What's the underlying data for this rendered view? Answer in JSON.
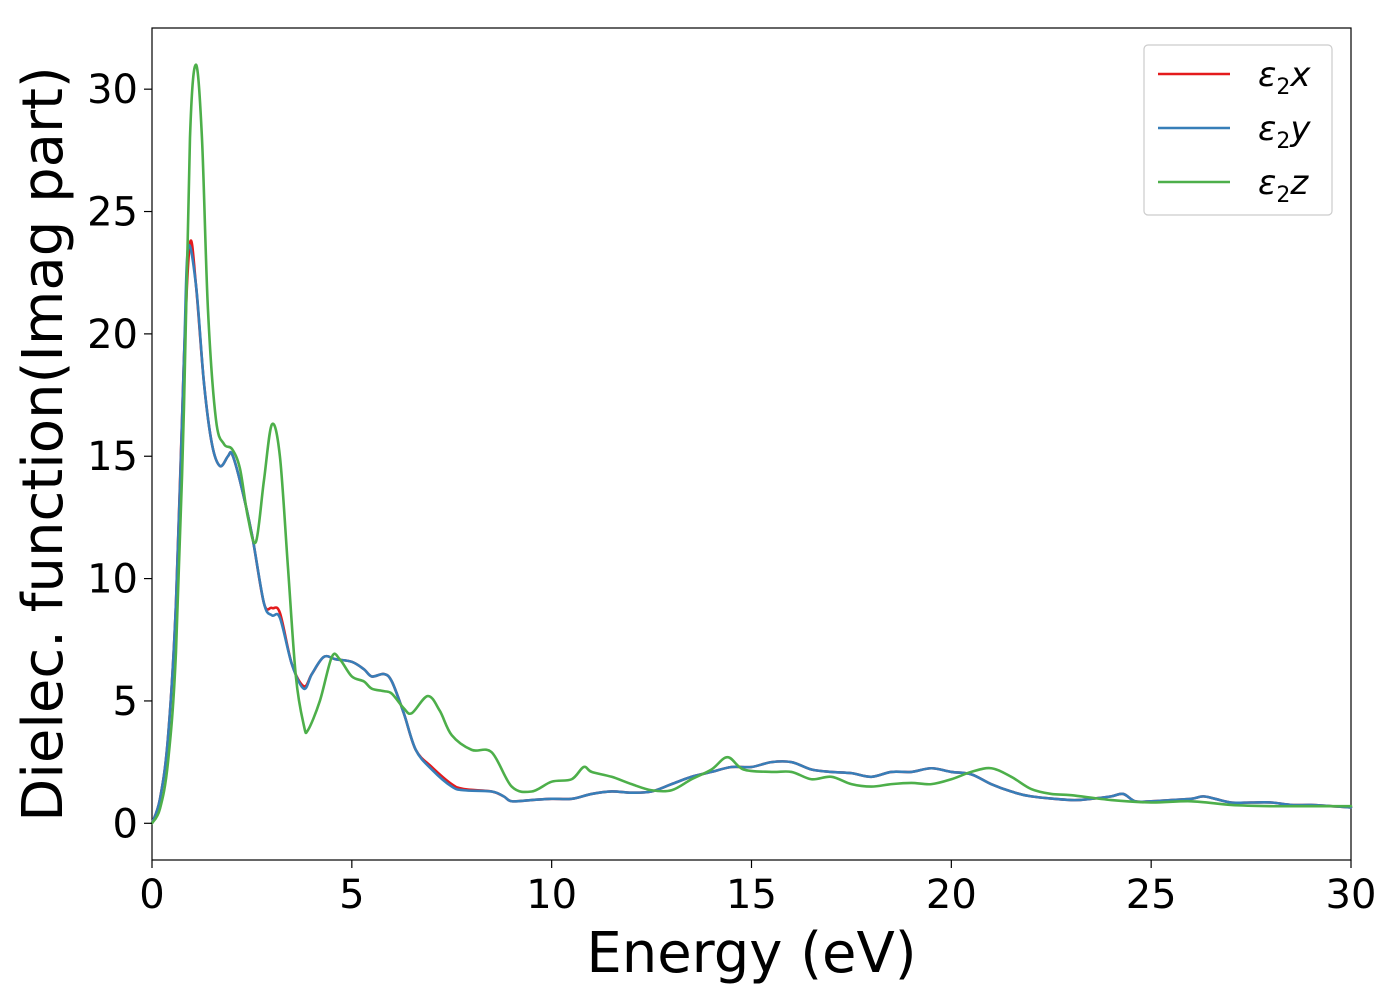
{
  "chart_data": {
    "type": "line",
    "title": "",
    "xlabel": "Energy (eV)",
    "ylabel": "Dielec. function(Imag part)",
    "xlim": [
      0,
      30
    ],
    "ylim": [
      -1.5,
      32.5
    ],
    "xticks": [
      0,
      5,
      10,
      15,
      20,
      25,
      30
    ],
    "yticks": [
      0,
      5,
      10,
      15,
      20,
      25,
      30
    ],
    "grid": false,
    "legend_position": "top-right",
    "series": [
      {
        "name": "ε2x",
        "legend_main": "ε",
        "legend_sub": "2",
        "legend_var": "x",
        "color": "#e41a1c",
        "points": [
          [
            0,
            0
          ],
          [
            0.2,
            1
          ],
          [
            0.4,
            3.5
          ],
          [
            0.6,
            9
          ],
          [
            0.8,
            19
          ],
          [
            0.95,
            23.7
          ],
          [
            1.1,
            22
          ],
          [
            1.3,
            18
          ],
          [
            1.5,
            15.5
          ],
          [
            1.7,
            14.6
          ],
          [
            1.9,
            15
          ],
          [
            2.0,
            15.1
          ],
          [
            2.2,
            14
          ],
          [
            2.5,
            11.8
          ],
          [
            2.8,
            9
          ],
          [
            3.0,
            8.8
          ],
          [
            3.2,
            8.6
          ],
          [
            3.5,
            6.5
          ],
          [
            3.8,
            5.6
          ],
          [
            4.0,
            6.1
          ],
          [
            4.3,
            6.8
          ],
          [
            4.6,
            6.7
          ],
          [
            5.0,
            6.6
          ],
          [
            5.3,
            6.3
          ],
          [
            5.5,
            6
          ],
          [
            5.8,
            6.1
          ],
          [
            6.0,
            5.8
          ],
          [
            6.3,
            4.5
          ],
          [
            6.6,
            3
          ],
          [
            7.0,
            2.3
          ],
          [
            7.5,
            1.6
          ],
          [
            7.8,
            1.4
          ],
          [
            8.5,
            1.3
          ],
          [
            8.8,
            1.1
          ],
          [
            9.0,
            0.9
          ],
          [
            9.5,
            0.95
          ],
          [
            10,
            1.0
          ],
          [
            10.5,
            1.0
          ],
          [
            11,
            1.2
          ],
          [
            11.5,
            1.3
          ],
          [
            12,
            1.25
          ],
          [
            12.5,
            1.3
          ],
          [
            13,
            1.6
          ],
          [
            13.5,
            1.9
          ],
          [
            14,
            2.1
          ],
          [
            14.5,
            2.3
          ],
          [
            15,
            2.3
          ],
          [
            15.5,
            2.5
          ],
          [
            16,
            2.5
          ],
          [
            16.5,
            2.2
          ],
          [
            17,
            2.1
          ],
          [
            17.5,
            2.05
          ],
          [
            18,
            1.9
          ],
          [
            18.5,
            2.1
          ],
          [
            19,
            2.1
          ],
          [
            19.5,
            2.25
          ],
          [
            20,
            2.1
          ],
          [
            20.5,
            2.0
          ],
          [
            21,
            1.6
          ],
          [
            21.5,
            1.3
          ],
          [
            22,
            1.1
          ],
          [
            23,
            0.95
          ],
          [
            23.5,
            1.0
          ],
          [
            24,
            1.1
          ],
          [
            24.3,
            1.2
          ],
          [
            24.6,
            0.9
          ],
          [
            25,
            0.9
          ],
          [
            25.5,
            0.95
          ],
          [
            26,
            1.0
          ],
          [
            26.3,
            1.1
          ],
          [
            26.6,
            1.0
          ],
          [
            27,
            0.85
          ],
          [
            27.5,
            0.85
          ],
          [
            28,
            0.85
          ],
          [
            28.5,
            0.75
          ],
          [
            29,
            0.75
          ],
          [
            29.5,
            0.7
          ],
          [
            30,
            0.65
          ]
        ]
      },
      {
        "name": "ε2y",
        "legend_main": "ε",
        "legend_sub": "2",
        "legend_var": "y",
        "color": "#377eb8",
        "points": [
          [
            0,
            0
          ],
          [
            0.2,
            1
          ],
          [
            0.4,
            3.5
          ],
          [
            0.6,
            9
          ],
          [
            0.8,
            19
          ],
          [
            0.9,
            23.5
          ],
          [
            1.1,
            22
          ],
          [
            1.3,
            18
          ],
          [
            1.5,
            15.5
          ],
          [
            1.7,
            14.6
          ],
          [
            1.9,
            15
          ],
          [
            2.0,
            15.1
          ],
          [
            2.2,
            14
          ],
          [
            2.5,
            11.8
          ],
          [
            2.8,
            9
          ],
          [
            3.0,
            8.5
          ],
          [
            3.2,
            8.4
          ],
          [
            3.5,
            6.5
          ],
          [
            3.8,
            5.5
          ],
          [
            4.0,
            6.1
          ],
          [
            4.3,
            6.8
          ],
          [
            4.6,
            6.7
          ],
          [
            5.0,
            6.6
          ],
          [
            5.3,
            6.3
          ],
          [
            5.5,
            6
          ],
          [
            5.8,
            6.1
          ],
          [
            6.0,
            5.8
          ],
          [
            6.3,
            4.5
          ],
          [
            6.6,
            3
          ],
          [
            7.0,
            2.2
          ],
          [
            7.5,
            1.5
          ],
          [
            7.8,
            1.35
          ],
          [
            8.5,
            1.3
          ],
          [
            8.8,
            1.1
          ],
          [
            9.0,
            0.9
          ],
          [
            9.5,
            0.95
          ],
          [
            10,
            1.0
          ],
          [
            10.5,
            1.0
          ],
          [
            11,
            1.2
          ],
          [
            11.5,
            1.3
          ],
          [
            12,
            1.25
          ],
          [
            12.5,
            1.3
          ],
          [
            13,
            1.6
          ],
          [
            13.5,
            1.9
          ],
          [
            14,
            2.1
          ],
          [
            14.5,
            2.3
          ],
          [
            15,
            2.3
          ],
          [
            15.5,
            2.5
          ],
          [
            16,
            2.5
          ],
          [
            16.5,
            2.2
          ],
          [
            17,
            2.1
          ],
          [
            17.5,
            2.05
          ],
          [
            18,
            1.9
          ],
          [
            18.5,
            2.1
          ],
          [
            19,
            2.1
          ],
          [
            19.5,
            2.25
          ],
          [
            20,
            2.1
          ],
          [
            20.5,
            2.0
          ],
          [
            21,
            1.6
          ],
          [
            21.5,
            1.3
          ],
          [
            22,
            1.1
          ],
          [
            23,
            0.95
          ],
          [
            23.5,
            1.0
          ],
          [
            24,
            1.1
          ],
          [
            24.3,
            1.2
          ],
          [
            24.6,
            0.9
          ],
          [
            25,
            0.9
          ],
          [
            25.5,
            0.95
          ],
          [
            26,
            1.0
          ],
          [
            26.3,
            1.1
          ],
          [
            26.6,
            1.0
          ],
          [
            27,
            0.85
          ],
          [
            27.5,
            0.85
          ],
          [
            28,
            0.85
          ],
          [
            28.5,
            0.75
          ],
          [
            29,
            0.75
          ],
          [
            29.5,
            0.7
          ],
          [
            30,
            0.65
          ]
        ]
      },
      {
        "name": "ε2z",
        "legend_main": "ε",
        "legend_sub": "2",
        "legend_var": "z",
        "color": "#4daf4a",
        "points": [
          [
            0,
            0
          ],
          [
            0.2,
            0.6
          ],
          [
            0.4,
            2.5
          ],
          [
            0.6,
            7
          ],
          [
            0.8,
            17
          ],
          [
            0.95,
            28
          ],
          [
            1.1,
            31
          ],
          [
            1.25,
            28
          ],
          [
            1.4,
            21
          ],
          [
            1.6,
            16.5
          ],
          [
            1.8,
            15.5
          ],
          [
            2.0,
            15.3
          ],
          [
            2.2,
            14.5
          ],
          [
            2.4,
            12.5
          ],
          [
            2.6,
            11.5
          ],
          [
            2.8,
            14
          ],
          [
            3.0,
            16.3
          ],
          [
            3.2,
            15
          ],
          [
            3.4,
            10.5
          ],
          [
            3.6,
            6
          ],
          [
            3.8,
            4
          ],
          [
            3.9,
            3.8
          ],
          [
            4.2,
            5
          ],
          [
            4.5,
            6.8
          ],
          [
            4.7,
            6.7
          ],
          [
            5.0,
            6
          ],
          [
            5.3,
            5.8
          ],
          [
            5.5,
            5.5
          ],
          [
            5.8,
            5.4
          ],
          [
            6.0,
            5.3
          ],
          [
            6.3,
            4.7
          ],
          [
            6.5,
            4.5
          ],
          [
            6.9,
            5.2
          ],
          [
            7.2,
            4.6
          ],
          [
            7.5,
            3.6
          ],
          [
            8.0,
            3
          ],
          [
            8.5,
            2.9
          ],
          [
            9.0,
            1.5
          ],
          [
            9.5,
            1.3
          ],
          [
            10,
            1.7
          ],
          [
            10.5,
            1.8
          ],
          [
            10.8,
            2.3
          ],
          [
            11,
            2.1
          ],
          [
            11.5,
            1.9
          ],
          [
            12,
            1.6
          ],
          [
            12.5,
            1.35
          ],
          [
            13,
            1.35
          ],
          [
            13.5,
            1.8
          ],
          [
            14,
            2.2
          ],
          [
            14.4,
            2.7
          ],
          [
            14.8,
            2.2
          ],
          [
            15.5,
            2.1
          ],
          [
            16,
            2.1
          ],
          [
            16.5,
            1.8
          ],
          [
            17,
            1.9
          ],
          [
            17.5,
            1.6
          ],
          [
            18,
            1.5
          ],
          [
            18.5,
            1.6
          ],
          [
            19,
            1.65
          ],
          [
            19.5,
            1.6
          ],
          [
            20,
            1.8
          ],
          [
            20.5,
            2.1
          ],
          [
            21,
            2.25
          ],
          [
            21.5,
            1.9
          ],
          [
            22,
            1.4
          ],
          [
            22.5,
            1.2
          ],
          [
            23,
            1.15
          ],
          [
            24,
            0.95
          ],
          [
            25,
            0.85
          ],
          [
            26,
            0.9
          ],
          [
            27,
            0.75
          ],
          [
            28,
            0.7
          ],
          [
            29,
            0.7
          ],
          [
            30,
            0.7
          ]
        ]
      }
    ]
  }
}
